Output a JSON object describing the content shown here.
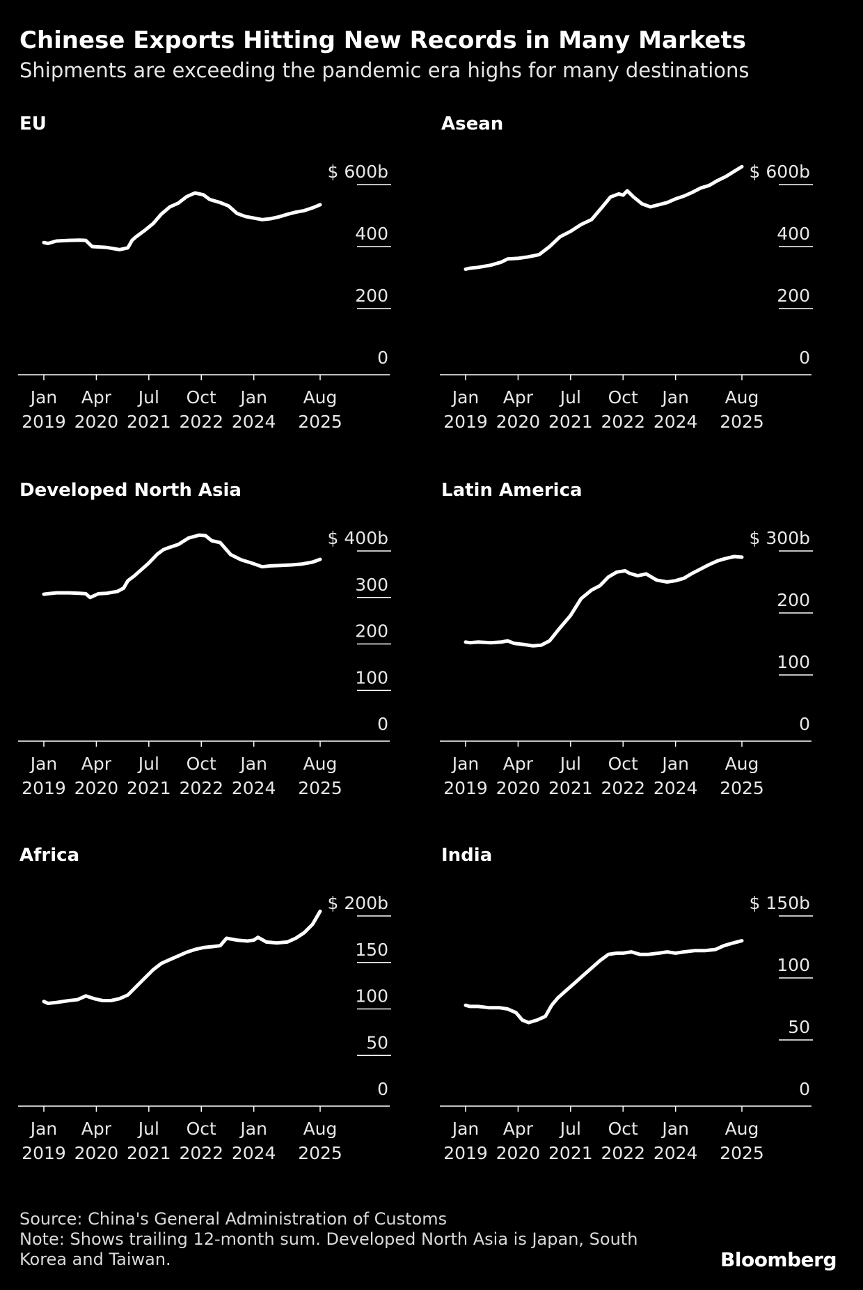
{
  "title": "Chinese Exports Hitting New Records in Many Markets",
  "subtitle": "Shipments are exceeding the pandemic era highs for many destinations",
  "footer": {
    "source": "Source: China's General Administration of Customs",
    "note_line1": "Note: Shows trailing 12-month sum. Developed North Asia is Japan, South",
    "note_line2": "Korea and Taiwan."
  },
  "brand": "Bloomberg",
  "colors": {
    "background": "#000000",
    "line": "#ffffff",
    "text": "#ffffff"
  },
  "chart_data": [
    {
      "type": "line",
      "title": "EU",
      "ylim": [
        0,
        600
      ],
      "ytick_labels": [
        "$ 600b",
        "400",
        "200",
        "0"
      ],
      "yticks": [
        600,
        400,
        200,
        0
      ],
      "xtick_labels": [
        [
          "Jan",
          "2019"
        ],
        [
          "Apr",
          "2020"
        ],
        [
          "Jul",
          "2021"
        ],
        [
          "Oct",
          "2022"
        ],
        [
          "Jan",
          "2024"
        ],
        [
          "Aug",
          "2025"
        ]
      ],
      "xticks": [
        2019.0,
        2020.25,
        2021.5,
        2022.75,
        2024.0,
        2025.58
      ],
      "x": [
        2019.0,
        2019.1,
        2019.3,
        2019.6,
        2019.85,
        2020.0,
        2020.15,
        2020.5,
        2020.8,
        2021.0,
        2021.1,
        2021.2,
        2021.4,
        2021.6,
        2021.8,
        2022.0,
        2022.2,
        2022.4,
        2022.6,
        2022.8,
        2022.95,
        2023.2,
        2023.4,
        2023.6,
        2023.8,
        2024.0,
        2024.2,
        2024.4,
        2024.6,
        2024.8,
        2025.0,
        2025.2,
        2025.4,
        2025.58
      ],
      "y": [
        413,
        410,
        418,
        420,
        421,
        420,
        400,
        397,
        390,
        396,
        420,
        432,
        452,
        474,
        505,
        528,
        540,
        561,
        573,
        567,
        552,
        542,
        531,
        507,
        497,
        492,
        487,
        490,
        496,
        504,
        511,
        516,
        525,
        535
      ]
    },
    {
      "type": "line",
      "title": "Asean",
      "ylim": [
        0,
        600
      ],
      "ytick_labels": [
        "$ 600b",
        "400",
        "200",
        "0"
      ],
      "yticks": [
        600,
        400,
        200,
        0
      ],
      "xtick_labels": [
        [
          "Jan",
          "2019"
        ],
        [
          "Apr",
          "2020"
        ],
        [
          "Jul",
          "2021"
        ],
        [
          "Oct",
          "2022"
        ],
        [
          "Jan",
          "2024"
        ],
        [
          "Aug",
          "2025"
        ]
      ],
      "xticks": [
        2019.0,
        2020.25,
        2021.5,
        2022.75,
        2024.0,
        2025.58
      ],
      "x": [
        2019.0,
        2019.1,
        2019.3,
        2019.6,
        2019.85,
        2020.0,
        2020.25,
        2020.5,
        2020.75,
        2021.0,
        2021.25,
        2021.5,
        2021.75,
        2022.0,
        2022.25,
        2022.45,
        2022.65,
        2022.75,
        2022.85,
        2023.0,
        2023.2,
        2023.4,
        2023.6,
        2023.8,
        2024.0,
        2024.2,
        2024.4,
        2024.6,
        2024.8,
        2025.0,
        2025.2,
        2025.4,
        2025.58
      ],
      "y": [
        327,
        330,
        333,
        340,
        350,
        360,
        362,
        367,
        374,
        400,
        432,
        449,
        471,
        487,
        527,
        560,
        570,
        566,
        580,
        560,
        538,
        528,
        535,
        542,
        554,
        563,
        575,
        589,
        597,
        613,
        626,
        643,
        658
      ]
    },
    {
      "type": "line",
      "title": "Developed North Asia",
      "ylim": [
        0,
        400
      ],
      "ytick_labels": [
        "$ 400b",
        "300",
        "200",
        "100",
        "0"
      ],
      "yticks": [
        400,
        300,
        200,
        100,
        0
      ],
      "xtick_labels": [
        [
          "Jan",
          "2019"
        ],
        [
          "Apr",
          "2020"
        ],
        [
          "Jul",
          "2021"
        ],
        [
          "Oct",
          "2022"
        ],
        [
          "Jan",
          "2024"
        ],
        [
          "Aug",
          "2025"
        ]
      ],
      "xticks": [
        2019.0,
        2020.25,
        2021.5,
        2022.75,
        2024.0,
        2025.58
      ],
      "x": [
        2019.0,
        2019.1,
        2019.3,
        2019.6,
        2019.85,
        2020.0,
        2020.1,
        2020.2,
        2020.3,
        2020.5,
        2020.75,
        2020.9,
        2021.0,
        2021.15,
        2021.3,
        2021.5,
        2021.7,
        2021.85,
        2022.0,
        2022.2,
        2022.45,
        2022.7,
        2022.85,
        2023.0,
        2023.2,
        2023.45,
        2023.7,
        2023.95,
        2024.2,
        2024.4,
        2024.65,
        2024.9,
        2025.15,
        2025.4,
        2025.58
      ],
      "y": [
        307,
        308,
        310,
        310,
        309,
        308,
        300,
        304,
        308,
        309,
        313,
        320,
        336,
        346,
        358,
        374,
        393,
        403,
        408,
        414,
        428,
        434,
        433,
        422,
        418,
        392,
        381,
        374,
        366,
        368,
        369,
        370,
        372,
        376,
        382
      ]
    },
    {
      "type": "line",
      "title": "Latin America",
      "ylim": [
        0,
        300
      ],
      "ytick_labels": [
        "$ 300b",
        "200",
        "100",
        "0"
      ],
      "yticks": [
        300,
        200,
        100,
        0
      ],
      "xtick_labels": [
        [
          "Jan",
          "2019"
        ],
        [
          "Apr",
          "2020"
        ],
        [
          "Jul",
          "2021"
        ],
        [
          "Oct",
          "2022"
        ],
        [
          "Jan",
          "2024"
        ],
        [
          "Aug",
          "2025"
        ]
      ],
      "xticks": [
        2019.0,
        2020.25,
        2021.5,
        2022.75,
        2024.0,
        2025.58
      ],
      "x": [
        2019.0,
        2019.1,
        2019.3,
        2019.6,
        2019.85,
        2020.0,
        2020.15,
        2020.4,
        2020.6,
        2020.8,
        2021.0,
        2021.2,
        2021.5,
        2021.75,
        2022.0,
        2022.2,
        2022.4,
        2022.6,
        2022.8,
        2022.9,
        2023.1,
        2023.3,
        2023.55,
        2023.8,
        2024.0,
        2024.2,
        2024.4,
        2024.6,
        2024.8,
        2025.0,
        2025.2,
        2025.4,
        2025.58
      ],
      "y": [
        153,
        152,
        153,
        152,
        153,
        155,
        151,
        149,
        147,
        148,
        155,
        172,
        196,
        223,
        237,
        244,
        258,
        266,
        268,
        264,
        260,
        263,
        253,
        250,
        252,
        256,
        264,
        271,
        278,
        284,
        288,
        291,
        290
      ]
    },
    {
      "type": "line",
      "title": "Africa",
      "ylim": [
        0,
        200
      ],
      "ytick_labels": [
        "$ 200b",
        "150",
        "100",
        "50",
        "0"
      ],
      "yticks": [
        200,
        150,
        100,
        50,
        0
      ],
      "xtick_labels": [
        [
          "Jan",
          "2019"
        ],
        [
          "Apr",
          "2020"
        ],
        [
          "Jul",
          "2021"
        ],
        [
          "Oct",
          "2022"
        ],
        [
          "Jan",
          "2024"
        ],
        [
          "Aug",
          "2025"
        ]
      ],
      "xticks": [
        2019.0,
        2020.25,
        2021.5,
        2022.75,
        2024.0,
        2025.58
      ],
      "x": [
        2019.0,
        2019.1,
        2019.3,
        2019.6,
        2019.8,
        2020.0,
        2020.2,
        2020.4,
        2020.6,
        2020.8,
        2021.0,
        2021.2,
        2021.4,
        2021.6,
        2021.8,
        2022.0,
        2022.2,
        2022.4,
        2022.6,
        2022.8,
        2023.0,
        2023.2,
        2023.35,
        2023.6,
        2023.85,
        2024.0,
        2024.1,
        2024.3,
        2024.55,
        2024.8,
        2025.0,
        2025.2,
        2025.4,
        2025.58
      ],
      "y": [
        108,
        106,
        107,
        109,
        110,
        114,
        111,
        109,
        109,
        111,
        115,
        124,
        133,
        142,
        149,
        153,
        157,
        161,
        164,
        166,
        167,
        168,
        176,
        174,
        173,
        174,
        177,
        172,
        171,
        172,
        176,
        182,
        191,
        205
      ]
    },
    {
      "type": "line",
      "title": "India",
      "ylim": [
        0,
        150
      ],
      "ytick_labels": [
        "$ 150b",
        "100",
        "50",
        "0"
      ],
      "yticks": [
        150,
        100,
        50,
        0
      ],
      "xtick_labels": [
        [
          "Jan",
          "2019"
        ],
        [
          "Apr",
          "2020"
        ],
        [
          "Jul",
          "2021"
        ],
        [
          "Oct",
          "2022"
        ],
        [
          "Jan",
          "2024"
        ],
        [
          "Aug",
          "2025"
        ]
      ],
      "xticks": [
        2019.0,
        2020.25,
        2021.5,
        2022.75,
        2024.0,
        2025.58
      ],
      "x": [
        2019.0,
        2019.1,
        2019.3,
        2019.55,
        2019.8,
        2020.0,
        2020.2,
        2020.35,
        2020.5,
        2020.7,
        2020.9,
        2021.05,
        2021.2,
        2021.4,
        2021.6,
        2021.8,
        2022.0,
        2022.2,
        2022.4,
        2022.6,
        2022.75,
        2022.95,
        2023.15,
        2023.35,
        2023.6,
        2023.8,
        2024.0,
        2024.2,
        2024.45,
        2024.7,
        2024.95,
        2025.15,
        2025.35,
        2025.58
      ],
      "y": [
        78,
        77,
        77,
        76,
        76,
        75,
        72,
        66,
        64,
        66,
        69,
        78,
        84,
        90,
        96,
        102,
        108,
        114,
        119,
        120,
        120,
        121,
        119,
        119,
        120,
        121,
        120,
        121,
        122,
        122,
        123,
        126,
        128,
        130
      ]
    }
  ]
}
